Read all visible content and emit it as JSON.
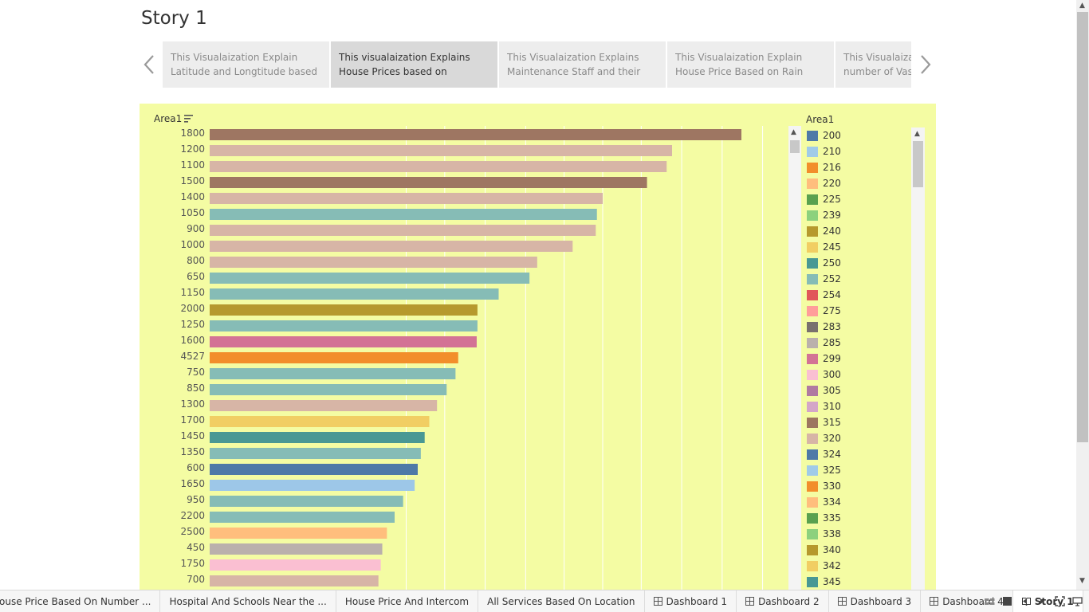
{
  "story": {
    "title": "Story 1"
  },
  "story_points": [
    {
      "text": "This Visualaization Explain Latitude and Longtitude based on",
      "active": false
    },
    {
      "text": "This visualaization Explains House Prices based on Location",
      "active": true
    },
    {
      "text": "This Visualaization Explains Maintenance Staff and their",
      "active": false
    },
    {
      "text": "This Visualaization Explain House Price Based on Rain Water",
      "active": false
    },
    {
      "text": "This Visualaization Explains number of Vastu",
      "active": false
    }
  ],
  "icons": {
    "prev": "chevron-left-icon",
    "next": "chevron-right-icon",
    "sort": "sort-descending-icon",
    "dashboard": "dashboard-grid-icon",
    "story": "story-book-icon"
  },
  "colors": {
    "viz_background": "#f4fca3",
    "active_story_point": "#d9d9d9"
  },
  "chart_data": {
    "type": "bar",
    "orientation": "horizontal",
    "axis_title": "Area1",
    "sorted": "descending",
    "categories": [
      "1800",
      "1200",
      "1100",
      "1500",
      "1400",
      "1050",
      "900",
      "1000",
      "800",
      "650",
      "1150",
      "2000",
      "1250",
      "1600",
      "4527",
      "750",
      "850",
      "1300",
      "1700",
      "1450",
      "1350",
      "600",
      "1650",
      "950",
      "2200",
      "2500",
      "450",
      "1750",
      "700"
    ],
    "values": [
      13800,
      12000,
      11860,
      11350,
      10200,
      10050,
      10020,
      9420,
      8500,
      8300,
      7500,
      6950,
      6950,
      6930,
      6450,
      6380,
      6150,
      5900,
      5700,
      5580,
      5480,
      5400,
      5320,
      5020,
      4800,
      4600,
      4480,
      4440,
      4380
    ],
    "bar_colors": [
      "#9e7662",
      "#d7b5a6",
      "#d7b5a6",
      "#9e7662",
      "#d7b5a6",
      "#86bcb6",
      "#d7b5a6",
      "#d7b5a6",
      "#d7b5a6",
      "#86bcb6",
      "#86bcb6",
      "#b6992d",
      "#86bcb6",
      "#d37295",
      "#f28e2b",
      "#86bcb6",
      "#86bcb6",
      "#d7b5a6",
      "#f1ce63",
      "#499894",
      "#86bcb6",
      "#4e79a7",
      "#9dc7e8",
      "#86bcb6",
      "#86bcb6",
      "#ffbe7d",
      "#bab0ac",
      "#fabfd2",
      "#d7b5a6"
    ],
    "xlim": [
      0,
      15000
    ],
    "gridline_values": [
      5100,
      6100,
      7150,
      8200,
      9200,
      10200,
      11200,
      12250,
      13300,
      14350
    ]
  },
  "legend": {
    "title": "Area1",
    "items": [
      {
        "label": "200",
        "color": "#4e79a7"
      },
      {
        "label": "210",
        "color": "#a0cbe8"
      },
      {
        "label": "216",
        "color": "#f28e2b"
      },
      {
        "label": "220",
        "color": "#ffbe7d"
      },
      {
        "label": "225",
        "color": "#59a14f"
      },
      {
        "label": "239",
        "color": "#8cd17d"
      },
      {
        "label": "240",
        "color": "#b6992d"
      },
      {
        "label": "245",
        "color": "#f1ce63"
      },
      {
        "label": "250",
        "color": "#499894"
      },
      {
        "label": "252",
        "color": "#86bcb6"
      },
      {
        "label": "254",
        "color": "#e15759"
      },
      {
        "label": "275",
        "color": "#ff9d9a"
      },
      {
        "label": "283",
        "color": "#79706e"
      },
      {
        "label": "285",
        "color": "#bab0ac"
      },
      {
        "label": "299",
        "color": "#d37295"
      },
      {
        "label": "300",
        "color": "#fabfd2"
      },
      {
        "label": "305",
        "color": "#b07aa1"
      },
      {
        "label": "310",
        "color": "#d4a6c8"
      },
      {
        "label": "315",
        "color": "#9d7660"
      },
      {
        "label": "320",
        "color": "#d7b5a6"
      },
      {
        "label": "324",
        "color": "#4e79a7"
      },
      {
        "label": "325",
        "color": "#a0cbe8"
      },
      {
        "label": "330",
        "color": "#f28e2b"
      },
      {
        "label": "334",
        "color": "#ffbe7d"
      },
      {
        "label": "335",
        "color": "#59a14f"
      },
      {
        "label": "338",
        "color": "#8cd17d"
      },
      {
        "label": "340",
        "color": "#b6992d"
      },
      {
        "label": "342",
        "color": "#f1ce63"
      },
      {
        "label": "345",
        "color": "#499894"
      }
    ]
  },
  "tabs": [
    {
      "label": "ouse Price Based On Number ...",
      "type": "sheet",
      "active": false
    },
    {
      "label": "Hospital And Schools Near the ...",
      "type": "sheet",
      "active": false
    },
    {
      "label": "House Price And Intercom",
      "type": "sheet",
      "active": false
    },
    {
      "label": "All Services Based On Location",
      "type": "sheet",
      "active": false
    },
    {
      "label": "Dashboard 1",
      "type": "dashboard",
      "active": false
    },
    {
      "label": "Dashboard 2",
      "type": "dashboard",
      "active": false
    },
    {
      "label": "Dashboard 3",
      "type": "dashboard",
      "active": false
    },
    {
      "label": "Dashboard 4",
      "type": "dashboard",
      "active": false
    },
    {
      "label": "Story 1",
      "type": "story",
      "active": true
    }
  ]
}
